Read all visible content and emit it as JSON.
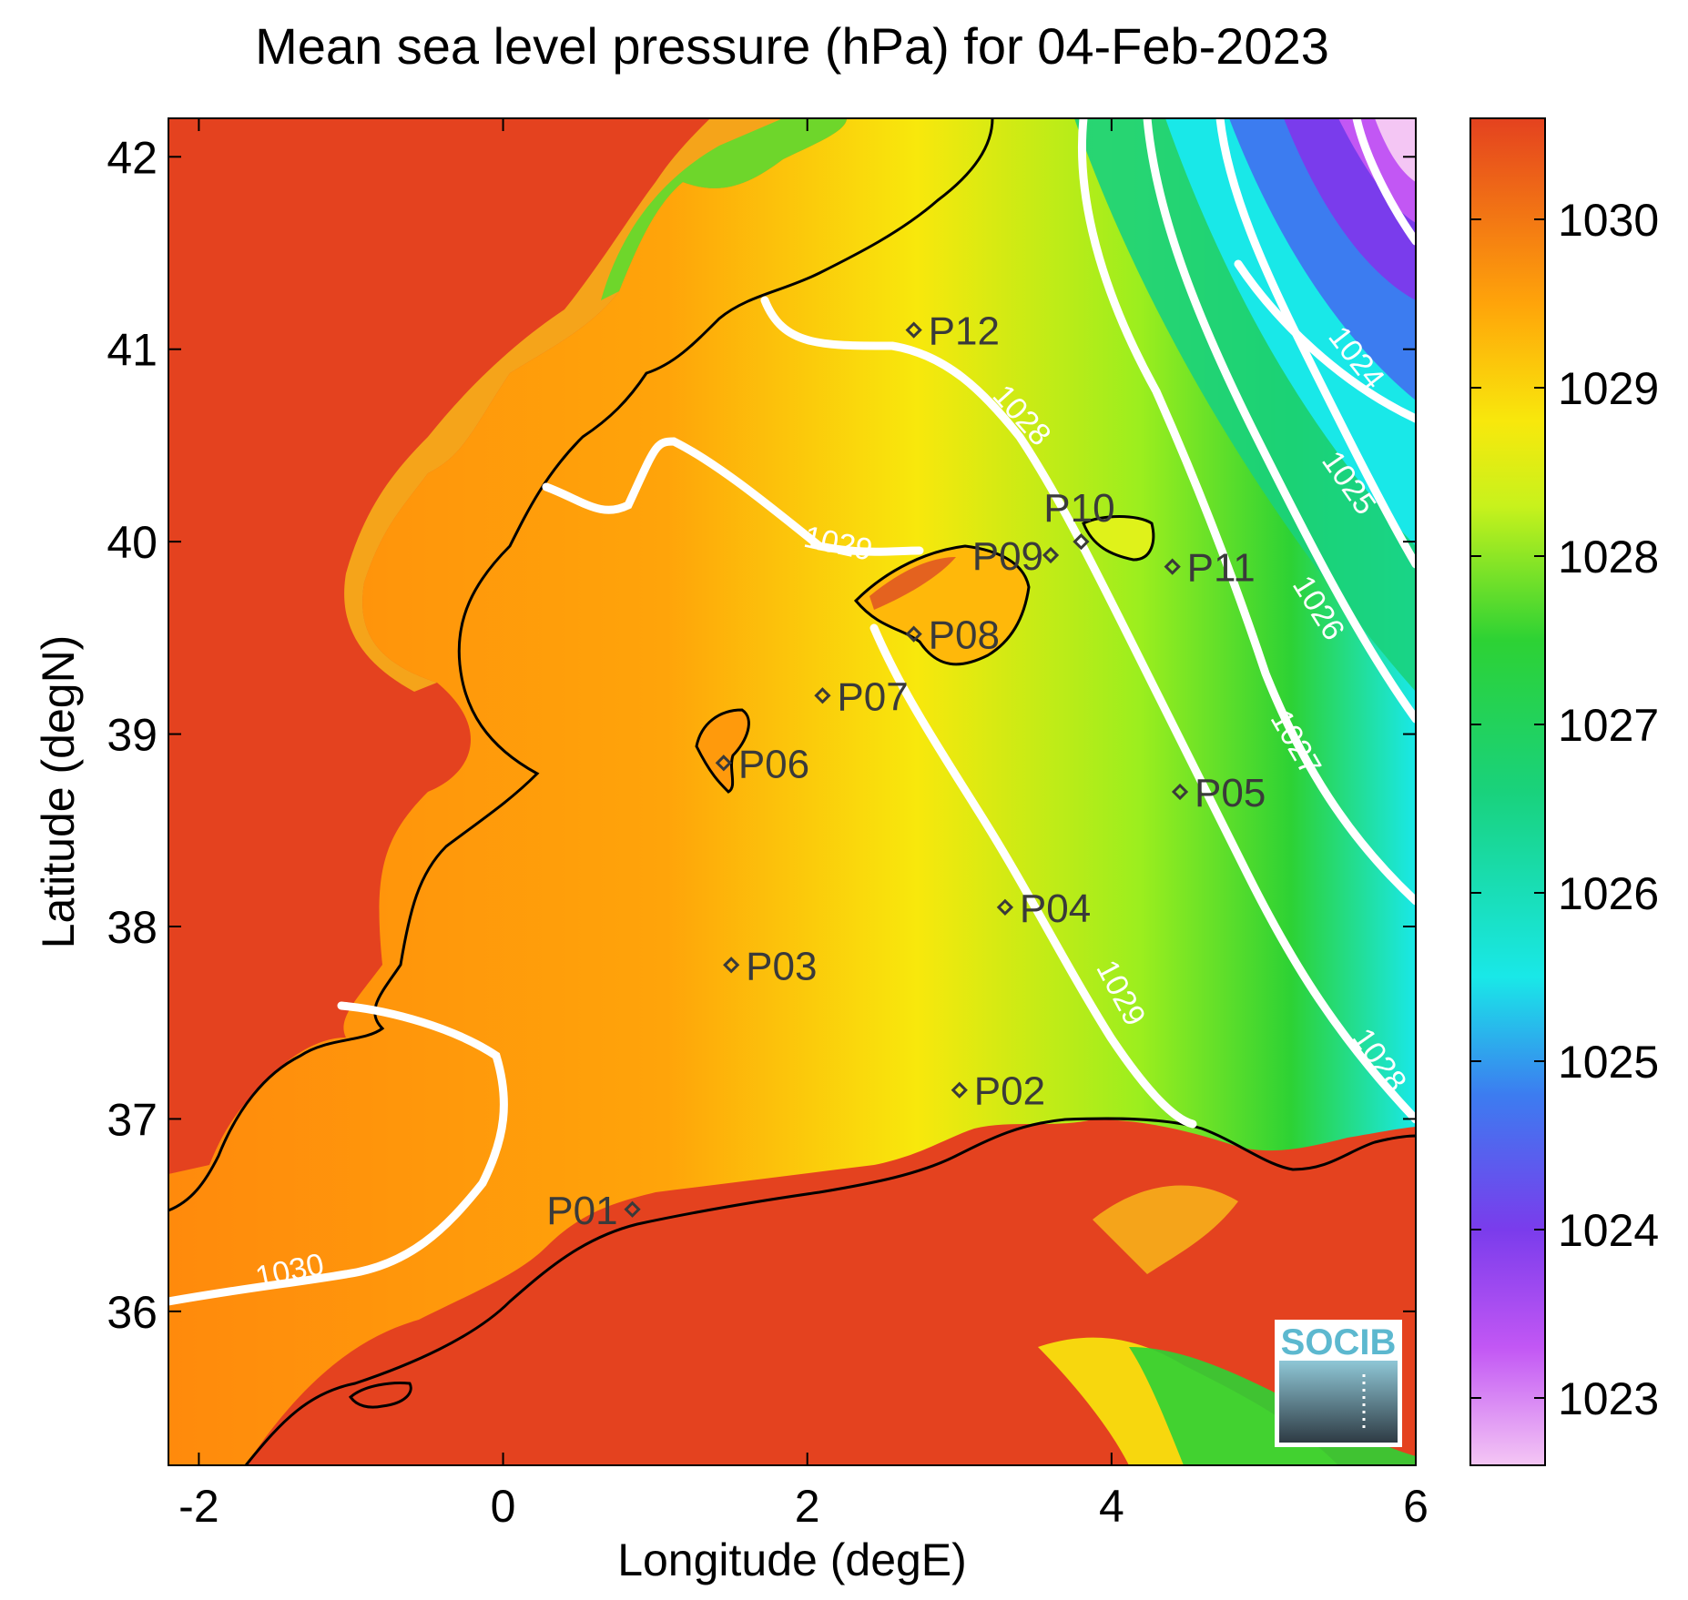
{
  "title": "Mean sea level pressure (hPa) for 04-Feb-2023",
  "xlabel": "Longitude (degE)",
  "ylabel": "Latitude (degN)",
  "map": {
    "lon_range": [
      -2.2,
      6.0
    ],
    "lat_range": [
      35.2,
      42.2
    ],
    "lon_ticks": [
      -2,
      0,
      2,
      4,
      6
    ],
    "lat_ticks": [
      36,
      37,
      38,
      39,
      40,
      41,
      42
    ],
    "land_color": "#e4421f",
    "contour_color": "#ffffff",
    "coast_color": "#000000"
  },
  "colorbar": {
    "min": 1022.6,
    "max": 1030.6,
    "ticks": [
      1023,
      1024,
      1025,
      1026,
      1027,
      1028,
      1029,
      1030
    ],
    "stops": [
      {
        "v": 1022.6,
        "c": "#f4c6f4"
      },
      {
        "v": 1023.3,
        "c": "#c257f4"
      },
      {
        "v": 1024.0,
        "c": "#7a3cec"
      },
      {
        "v": 1024.8,
        "c": "#3c7cf0"
      },
      {
        "v": 1025.5,
        "c": "#19e8e8"
      },
      {
        "v": 1026.6,
        "c": "#19d27c"
      },
      {
        "v": 1027.5,
        "c": "#2dd234"
      },
      {
        "v": 1028.3,
        "c": "#c8f21c"
      },
      {
        "v": 1028.8,
        "c": "#f8e80c"
      },
      {
        "v": 1029.5,
        "c": "#ffa40a"
      },
      {
        "v": 1030.6,
        "c": "#e4421f"
      }
    ]
  },
  "contour_labels": [
    {
      "text": "1024",
      "lon": 5.6,
      "lat": 40.95,
      "angle": 52
    },
    {
      "text": "1025",
      "lon": 5.55,
      "lat": 40.3,
      "angle": 55
    },
    {
      "text": "1026",
      "lon": 5.35,
      "lat": 39.65,
      "angle": 58
    },
    {
      "text": "1027",
      "lon": 5.2,
      "lat": 38.95,
      "angle": 60
    },
    {
      "text": "1028",
      "lon": 3.4,
      "lat": 40.65,
      "angle": 48
    },
    {
      "text": "1028",
      "lon": 5.75,
      "lat": 37.3,
      "angle": 55
    },
    {
      "text": "1029",
      "lon": 2.2,
      "lat": 39.98,
      "angle": 12
    },
    {
      "text": "1029",
      "lon": 4.05,
      "lat": 37.65,
      "angle": 62
    },
    {
      "text": "1030",
      "lon": -1.4,
      "lat": 36.2,
      "angle": -12
    }
  ],
  "stations": [
    {
      "id": "P01",
      "lon": 0.85,
      "lat": 36.53,
      "side": "left"
    },
    {
      "id": "P02",
      "lon": 3.0,
      "lat": 37.15,
      "side": "right"
    },
    {
      "id": "P03",
      "lon": 1.5,
      "lat": 37.8,
      "side": "right"
    },
    {
      "id": "P04",
      "lon": 3.3,
      "lat": 38.1,
      "side": "right"
    },
    {
      "id": "P05",
      "lon": 4.45,
      "lat": 38.7,
      "side": "right"
    },
    {
      "id": "P06",
      "lon": 1.45,
      "lat": 38.85,
      "side": "right"
    },
    {
      "id": "P07",
      "lon": 2.1,
      "lat": 39.2,
      "side": "right"
    },
    {
      "id": "P08",
      "lon": 2.7,
      "lat": 39.52,
      "side": "right"
    },
    {
      "id": "P09",
      "lon": 3.6,
      "lat": 39.93,
      "side": "overlap"
    },
    {
      "id": "P10",
      "lon": 3.8,
      "lat": 40.0,
      "side": "above"
    },
    {
      "id": "P11",
      "lon": 4.4,
      "lat": 39.87,
      "side": "right"
    },
    {
      "id": "P12",
      "lon": 2.7,
      "lat": 41.1,
      "side": "right"
    }
  ],
  "logo": {
    "text": "SOCIB"
  }
}
